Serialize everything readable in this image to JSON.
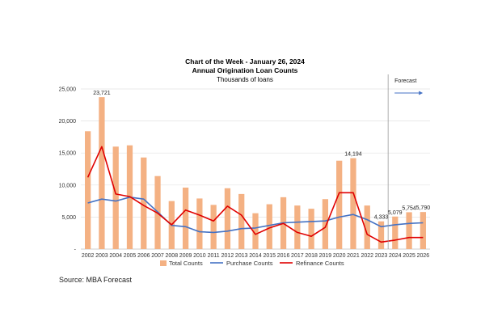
{
  "source": "Source: MBA Forecast",
  "chart_data": {
    "type": "bar",
    "title": "Chart of the Week - January 26, 2024",
    "subtitle": "Annual Origination Loan Counts",
    "unit_label": "Thousands of loans",
    "forecast_label": "Forecast",
    "forecast_start_between": [
      "2023",
      "2024"
    ],
    "ylim": [
      0,
      25000
    ],
    "yticks": [
      "-",
      "5,000",
      "10,000",
      "15,000",
      "20,000",
      "25,000"
    ],
    "categories": [
      "2002",
      "2003",
      "2004",
      "2005",
      "2006",
      "2007",
      "2008",
      "2009",
      "2010",
      "2011",
      "2012",
      "2013",
      "2014",
      "2015",
      "2016",
      "2017",
      "2018",
      "2019",
      "2020",
      "2021",
      "2022",
      "2023",
      "2024",
      "2025",
      "2026"
    ],
    "series": [
      {
        "name": "Total Counts",
        "type": "bar",
        "color": "#F4B183",
        "values": [
          18400,
          23721,
          16000,
          16200,
          14300,
          11400,
          7500,
          9600,
          7900,
          6900,
          9500,
          8600,
          5600,
          7000,
          8100,
          6800,
          6300,
          7800,
          13800,
          14194,
          6800,
          4333,
          5079,
          5754,
          5790
        ]
      },
      {
        "name": "Purchase Counts",
        "type": "line",
        "color": "#4472C4",
        "values": [
          7200,
          7800,
          7500,
          8100,
          7800,
          5800,
          3700,
          3500,
          2700,
          2600,
          2800,
          3200,
          3300,
          3700,
          4100,
          4200,
          4300,
          4400,
          5000,
          5400,
          4600,
          3500,
          3800,
          4000,
          4100
        ]
      },
      {
        "name": "Refinance Counts",
        "type": "line",
        "color": "#E00000",
        "values": [
          11200,
          16000,
          8600,
          8200,
          6800,
          5600,
          3800,
          6100,
          5300,
          4400,
          6700,
          5300,
          2300,
          3300,
          4000,
          2600,
          2000,
          3400,
          8800,
          8800,
          2300,
          1100,
          1400,
          1800,
          1800
        ]
      }
    ],
    "data_labels": [
      {
        "category": "2003",
        "text": "23,721"
      },
      {
        "category": "2021",
        "text": "14,194"
      },
      {
        "category": "2023",
        "text": "4,333"
      },
      {
        "category": "2024",
        "text": "5,079"
      },
      {
        "category": "2025",
        "text": "5,754"
      },
      {
        "category": "2026",
        "text": "5,790"
      }
    ]
  }
}
